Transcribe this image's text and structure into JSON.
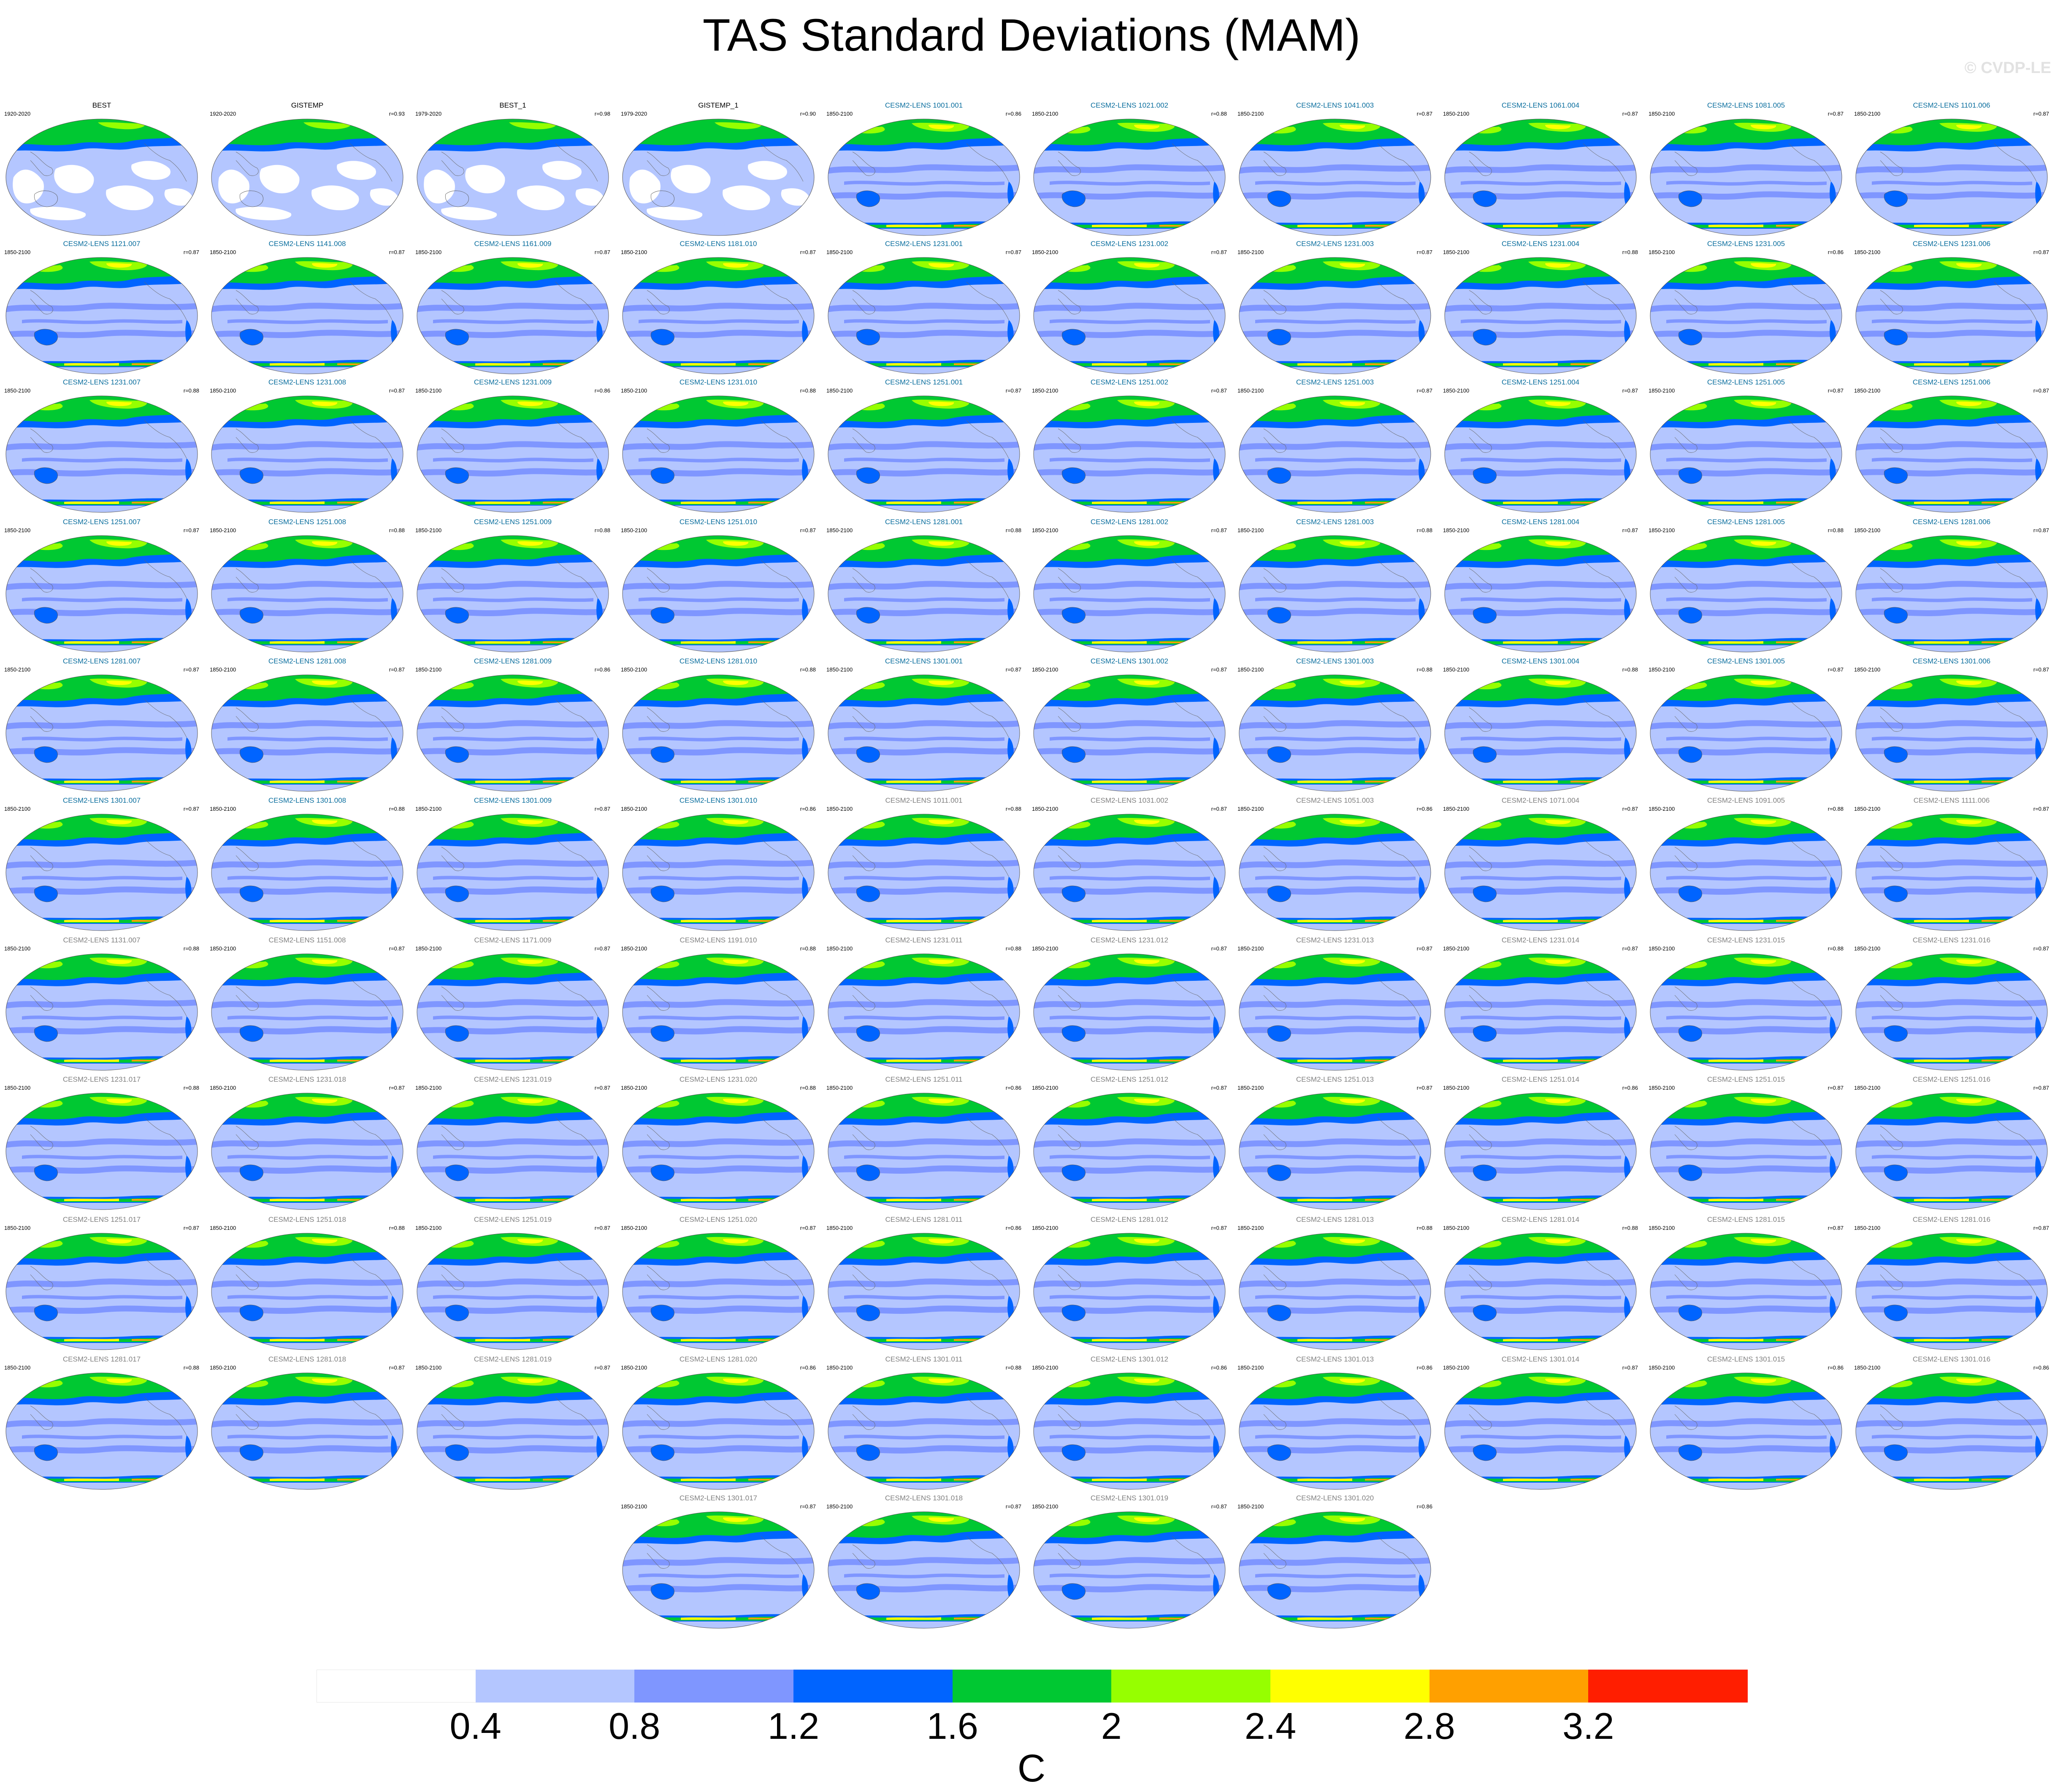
{
  "title": "TAS Standard Deviations (MAM)",
  "watermark": "© CVDP-LE",
  "chart_data": {
    "type": "map",
    "title": "TAS Standard Deviations (MAM)",
    "panels": [
      {
        "name": "BEST",
        "period": "1920-2020",
        "r": "",
        "kind": "obs"
      },
      {
        "name": "GISTEMP",
        "period": "1920-2020",
        "r": "r=0.93",
        "kind": "obs"
      },
      {
        "name": "BEST_1",
        "period": "1979-2020",
        "r": "r=0.98",
        "kind": "obs"
      },
      {
        "name": "GISTEMP_1",
        "period": "1979-2020",
        "r": "r=0.90",
        "kind": "obs"
      },
      {
        "name": "CESM2-LENS 1001.001",
        "period": "1850-2100",
        "r": "r=0.86",
        "kind": "teal"
      },
      {
        "name": "CESM2-LENS 1021.002",
        "period": "1850-2100",
        "r": "r=0.88",
        "kind": "teal"
      },
      {
        "name": "CESM2-LENS 1041.003",
        "period": "1850-2100",
        "r": "r=0.87",
        "kind": "teal"
      },
      {
        "name": "CESM2-LENS 1061.004",
        "period": "1850-2100",
        "r": "r=0.87",
        "kind": "teal"
      },
      {
        "name": "CESM2-LENS 1081.005",
        "period": "1850-2100",
        "r": "r=0.87",
        "kind": "teal"
      },
      {
        "name": "CESM2-LENS 1101.006",
        "period": "1850-2100",
        "r": "r=0.87",
        "kind": "teal"
      },
      {
        "name": "CESM2-LENS 1121.007",
        "period": "1850-2100",
        "r": "r=0.87",
        "kind": "teal"
      },
      {
        "name": "CESM2-LENS 1141.008",
        "period": "1850-2100",
        "r": "r=0.87",
        "kind": "teal"
      },
      {
        "name": "CESM2-LENS 1161.009",
        "period": "1850-2100",
        "r": "r=0.87",
        "kind": "teal"
      },
      {
        "name": "CESM2-LENS 1181.010",
        "period": "1850-2100",
        "r": "r=0.87",
        "kind": "teal"
      },
      {
        "name": "CESM2-LENS 1231.001",
        "period": "1850-2100",
        "r": "r=0.87",
        "kind": "teal"
      },
      {
        "name": "CESM2-LENS 1231.002",
        "period": "1850-2100",
        "r": "r=0.87",
        "kind": "teal"
      },
      {
        "name": "CESM2-LENS 1231.003",
        "period": "1850-2100",
        "r": "r=0.87",
        "kind": "teal"
      },
      {
        "name": "CESM2-LENS 1231.004",
        "period": "1850-2100",
        "r": "r=0.88",
        "kind": "teal"
      },
      {
        "name": "CESM2-LENS 1231.005",
        "period": "1850-2100",
        "r": "r=0.86",
        "kind": "teal"
      },
      {
        "name": "CESM2-LENS 1231.006",
        "period": "1850-2100",
        "r": "r=0.87",
        "kind": "teal"
      },
      {
        "name": "CESM2-LENS 1231.007",
        "period": "1850-2100",
        "r": "r=0.88",
        "kind": "teal"
      },
      {
        "name": "CESM2-LENS 1231.008",
        "period": "1850-2100",
        "r": "r=0.87",
        "kind": "teal"
      },
      {
        "name": "CESM2-LENS 1231.009",
        "period": "1850-2100",
        "r": "r=0.86",
        "kind": "teal"
      },
      {
        "name": "CESM2-LENS 1231.010",
        "period": "1850-2100",
        "r": "r=0.88",
        "kind": "teal"
      },
      {
        "name": "CESM2-LENS 1251.001",
        "period": "1850-2100",
        "r": "r=0.87",
        "kind": "teal"
      },
      {
        "name": "CESM2-LENS 1251.002",
        "period": "1850-2100",
        "r": "r=0.87",
        "kind": "teal"
      },
      {
        "name": "CESM2-LENS 1251.003",
        "period": "1850-2100",
        "r": "r=0.87",
        "kind": "teal"
      },
      {
        "name": "CESM2-LENS 1251.004",
        "period": "1850-2100",
        "r": "r=0.87",
        "kind": "teal"
      },
      {
        "name": "CESM2-LENS 1251.005",
        "period": "1850-2100",
        "r": "r=0.87",
        "kind": "teal"
      },
      {
        "name": "CESM2-LENS 1251.006",
        "period": "1850-2100",
        "r": "r=0.87",
        "kind": "teal"
      },
      {
        "name": "CESM2-LENS 1251.007",
        "period": "1850-2100",
        "r": "r=0.87",
        "kind": "teal"
      },
      {
        "name": "CESM2-LENS 1251.008",
        "period": "1850-2100",
        "r": "r=0.88",
        "kind": "teal"
      },
      {
        "name": "CESM2-LENS 1251.009",
        "period": "1850-2100",
        "r": "r=0.88",
        "kind": "teal"
      },
      {
        "name": "CESM2-LENS 1251.010",
        "period": "1850-2100",
        "r": "r=0.87",
        "kind": "teal"
      },
      {
        "name": "CESM2-LENS 1281.001",
        "period": "1850-2100",
        "r": "r=0.88",
        "kind": "teal"
      },
      {
        "name": "CESM2-LENS 1281.002",
        "period": "1850-2100",
        "r": "r=0.87",
        "kind": "teal"
      },
      {
        "name": "CESM2-LENS 1281.003",
        "period": "1850-2100",
        "r": "r=0.88",
        "kind": "teal"
      },
      {
        "name": "CESM2-LENS 1281.004",
        "period": "1850-2100",
        "r": "r=0.87",
        "kind": "teal"
      },
      {
        "name": "CESM2-LENS 1281.005",
        "period": "1850-2100",
        "r": "r=0.88",
        "kind": "teal"
      },
      {
        "name": "CESM2-LENS 1281.006",
        "period": "1850-2100",
        "r": "r=0.87",
        "kind": "teal"
      },
      {
        "name": "CESM2-LENS 1281.007",
        "period": "1850-2100",
        "r": "r=0.87",
        "kind": "teal"
      },
      {
        "name": "CESM2-LENS 1281.008",
        "period": "1850-2100",
        "r": "r=0.87",
        "kind": "teal"
      },
      {
        "name": "CESM2-LENS 1281.009",
        "period": "1850-2100",
        "r": "r=0.86",
        "kind": "teal"
      },
      {
        "name": "CESM2-LENS 1281.010",
        "period": "1850-2100",
        "r": "r=0.88",
        "kind": "teal"
      },
      {
        "name": "CESM2-LENS 1301.001",
        "period": "1850-2100",
        "r": "r=0.87",
        "kind": "teal"
      },
      {
        "name": "CESM2-LENS 1301.002",
        "period": "1850-2100",
        "r": "r=0.87",
        "kind": "teal"
      },
      {
        "name": "CESM2-LENS 1301.003",
        "period": "1850-2100",
        "r": "r=0.88",
        "kind": "teal"
      },
      {
        "name": "CESM2-LENS 1301.004",
        "period": "1850-2100",
        "r": "r=0.88",
        "kind": "teal"
      },
      {
        "name": "CESM2-LENS 1301.005",
        "period": "1850-2100",
        "r": "r=0.87",
        "kind": "teal"
      },
      {
        "name": "CESM2-LENS 1301.006",
        "period": "1850-2100",
        "r": "r=0.87",
        "kind": "teal"
      },
      {
        "name": "CESM2-LENS 1301.007",
        "period": "1850-2100",
        "r": "r=0.87",
        "kind": "teal"
      },
      {
        "name": "CESM2-LENS 1301.008",
        "period": "1850-2100",
        "r": "r=0.88",
        "kind": "teal"
      },
      {
        "name": "CESM2-LENS 1301.009",
        "period": "1850-2100",
        "r": "r=0.87",
        "kind": "teal"
      },
      {
        "name": "CESM2-LENS 1301.010",
        "period": "1850-2100",
        "r": "r=0.86",
        "kind": "teal"
      },
      {
        "name": "CESM2-LENS 1011.001",
        "period": "1850-2100",
        "r": "r=0.88",
        "kind": "gray"
      },
      {
        "name": "CESM2-LENS 1031.002",
        "period": "1850-2100",
        "r": "r=0.87",
        "kind": "gray"
      },
      {
        "name": "CESM2-LENS 1051.003",
        "period": "1850-2100",
        "r": "r=0.86",
        "kind": "gray"
      },
      {
        "name": "CESM2-LENS 1071.004",
        "period": "1850-2100",
        "r": "r=0.87",
        "kind": "gray"
      },
      {
        "name": "CESM2-LENS 1091.005",
        "period": "1850-2100",
        "r": "r=0.88",
        "kind": "gray"
      },
      {
        "name": "CESM2-LENS 1111.006",
        "period": "1850-2100",
        "r": "r=0.87",
        "kind": "gray"
      },
      {
        "name": "CESM2-LENS 1131.007",
        "period": "1850-2100",
        "r": "r=0.88",
        "kind": "gray"
      },
      {
        "name": "CESM2-LENS 1151.008",
        "period": "1850-2100",
        "r": "r=0.87",
        "kind": "gray"
      },
      {
        "name": "CESM2-LENS 1171.009",
        "period": "1850-2100",
        "r": "r=0.87",
        "kind": "gray"
      },
      {
        "name": "CESM2-LENS 1191.010",
        "period": "1850-2100",
        "r": "r=0.88",
        "kind": "gray"
      },
      {
        "name": "CESM2-LENS 1231.011",
        "period": "1850-2100",
        "r": "r=0.88",
        "kind": "gray"
      },
      {
        "name": "CESM2-LENS 1231.012",
        "period": "1850-2100",
        "r": "r=0.87",
        "kind": "gray"
      },
      {
        "name": "CESM2-LENS 1231.013",
        "period": "1850-2100",
        "r": "r=0.87",
        "kind": "gray"
      },
      {
        "name": "CESM2-LENS 1231.014",
        "period": "1850-2100",
        "r": "r=0.87",
        "kind": "gray"
      },
      {
        "name": "CESM2-LENS 1231.015",
        "period": "1850-2100",
        "r": "r=0.88",
        "kind": "gray"
      },
      {
        "name": "CESM2-LENS 1231.016",
        "period": "1850-2100",
        "r": "r=0.87",
        "kind": "gray"
      },
      {
        "name": "CESM2-LENS 1231.017",
        "period": "1850-2100",
        "r": "r=0.88",
        "kind": "gray"
      },
      {
        "name": "CESM2-LENS 1231.018",
        "period": "1850-2100",
        "r": "r=0.87",
        "kind": "gray"
      },
      {
        "name": "CESM2-LENS 1231.019",
        "period": "1850-2100",
        "r": "r=0.87",
        "kind": "gray"
      },
      {
        "name": "CESM2-LENS 1231.020",
        "period": "1850-2100",
        "r": "r=0.88",
        "kind": "gray"
      },
      {
        "name": "CESM2-LENS 1251.011",
        "period": "1850-2100",
        "r": "r=0.86",
        "kind": "gray"
      },
      {
        "name": "CESM2-LENS 1251.012",
        "period": "1850-2100",
        "r": "r=0.87",
        "kind": "gray"
      },
      {
        "name": "CESM2-LENS 1251.013",
        "period": "1850-2100",
        "r": "r=0.87",
        "kind": "gray"
      },
      {
        "name": "CESM2-LENS 1251.014",
        "period": "1850-2100",
        "r": "r=0.86",
        "kind": "gray"
      },
      {
        "name": "CESM2-LENS 1251.015",
        "period": "1850-2100",
        "r": "r=0.87",
        "kind": "gray"
      },
      {
        "name": "CESM2-LENS 1251.016",
        "period": "1850-2100",
        "r": "r=0.87",
        "kind": "gray"
      },
      {
        "name": "CESM2-LENS 1251.017",
        "period": "1850-2100",
        "r": "r=0.87",
        "kind": "gray"
      },
      {
        "name": "CESM2-LENS 1251.018",
        "period": "1850-2100",
        "r": "r=0.88",
        "kind": "gray"
      },
      {
        "name": "CESM2-LENS 1251.019",
        "period": "1850-2100",
        "r": "r=0.87",
        "kind": "gray"
      },
      {
        "name": "CESM2-LENS 1251.020",
        "period": "1850-2100",
        "r": "r=0.87",
        "kind": "gray"
      },
      {
        "name": "CESM2-LENS 1281.011",
        "period": "1850-2100",
        "r": "r=0.86",
        "kind": "gray"
      },
      {
        "name": "CESM2-LENS 1281.012",
        "period": "1850-2100",
        "r": "r=0.87",
        "kind": "gray"
      },
      {
        "name": "CESM2-LENS 1281.013",
        "period": "1850-2100",
        "r": "r=0.88",
        "kind": "gray"
      },
      {
        "name": "CESM2-LENS 1281.014",
        "period": "1850-2100",
        "r": "r=0.88",
        "kind": "gray"
      },
      {
        "name": "CESM2-LENS 1281.015",
        "period": "1850-2100",
        "r": "r=0.87",
        "kind": "gray"
      },
      {
        "name": "CESM2-LENS 1281.016",
        "period": "1850-2100",
        "r": "r=0.87",
        "kind": "gray"
      },
      {
        "name": "CESM2-LENS 1281.017",
        "period": "1850-2100",
        "r": "r=0.88",
        "kind": "gray"
      },
      {
        "name": "CESM2-LENS 1281.018",
        "period": "1850-2100",
        "r": "r=0.87",
        "kind": "gray"
      },
      {
        "name": "CESM2-LENS 1281.019",
        "period": "1850-2100",
        "r": "r=0.87",
        "kind": "gray"
      },
      {
        "name": "CESM2-LENS 1281.020",
        "period": "1850-2100",
        "r": "r=0.86",
        "kind": "gray"
      },
      {
        "name": "CESM2-LENS 1301.011",
        "period": "1850-2100",
        "r": "r=0.88",
        "kind": "gray"
      },
      {
        "name": "CESM2-LENS 1301.012",
        "period": "1850-2100",
        "r": "r=0.86",
        "kind": "gray"
      },
      {
        "name": "CESM2-LENS 1301.013",
        "period": "1850-2100",
        "r": "r=0.86",
        "kind": "gray"
      },
      {
        "name": "CESM2-LENS 1301.014",
        "period": "1850-2100",
        "r": "r=0.87",
        "kind": "gray"
      },
      {
        "name": "CESM2-LENS 1301.015",
        "period": "1850-2100",
        "r": "r=0.86",
        "kind": "gray"
      },
      {
        "name": "CESM2-LENS 1301.016",
        "period": "1850-2100",
        "r": "r=0.86",
        "kind": "gray"
      },
      {
        "name": "CESM2-LENS 1301.017",
        "period": "1850-2100",
        "r": "r=0.87",
        "kind": "gray"
      },
      {
        "name": "CESM2-LENS 1301.018",
        "period": "1850-2100",
        "r": "r=0.87",
        "kind": "gray"
      },
      {
        "name": "CESM2-LENS 1301.019",
        "period": "1850-2100",
        "r": "r=0.87",
        "kind": "gray"
      },
      {
        "name": "CESM2-LENS 1301.020",
        "period": "1850-2100",
        "r": "r=0.86",
        "kind": "gray"
      }
    ],
    "colorbar": {
      "unit": "C",
      "levels": [
        0.4,
        0.8,
        1.2,
        1.6,
        2,
        2.4,
        2.8,
        3.2
      ],
      "tick_labels": [
        "0.4",
        "0.8",
        "1.2",
        "1.6",
        "2",
        "2.4",
        "2.8",
        "3.2"
      ],
      "colors": [
        "#ffffff",
        "#b4c6ff",
        "#7f96ff",
        "#0064ff",
        "#00c832",
        "#96ff00",
        "#ffff00",
        "#ffa000",
        "#ff1e00"
      ]
    }
  },
  "colors": {
    "name_obs": "#000000",
    "name_teal": "#0a6e9e",
    "name_gray": "#808080",
    "ocean_model": "#b4c6ff",
    "ocean_obs": "#b4c6ff",
    "missing": "#ffffff"
  }
}
